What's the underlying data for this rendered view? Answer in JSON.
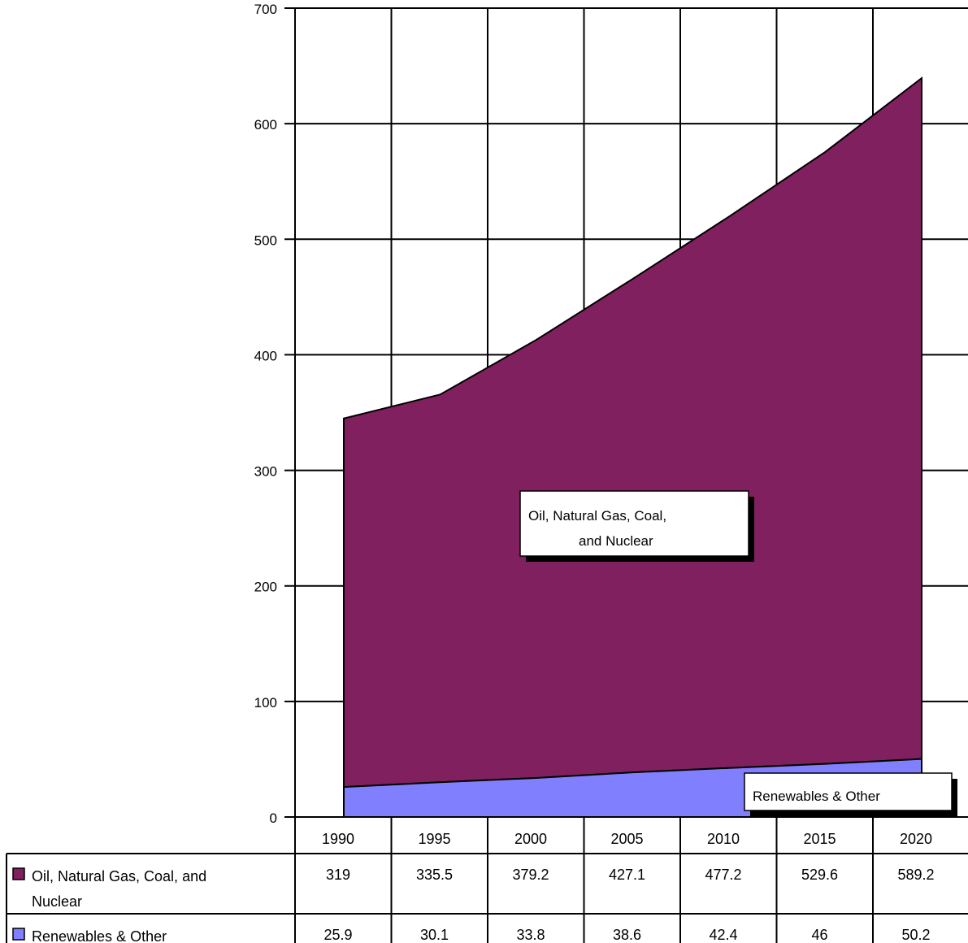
{
  "chart_data": {
    "type": "area",
    "stacked": true,
    "categories": [
      "1990",
      "1995",
      "2000",
      "2005",
      "2010",
      "2015",
      "2020"
    ],
    "ylim": [
      0,
      700
    ],
    "y_ticks": [
      "0",
      "100",
      "200",
      "300",
      "400",
      "500",
      "600",
      "700"
    ],
    "grid": true,
    "series": [
      {
        "name": "Renewables & Other",
        "color": "#8080ff",
        "values": [
          25.9,
          30.1,
          33.8,
          38.6,
          42.4,
          46,
          50.2
        ],
        "value_labels": [
          "25.9",
          "30.1",
          "33.8",
          "38.6",
          "42.4",
          "46",
          "50.2"
        ]
      },
      {
        "name": "Oil, Natural Gas, Coal, and Nuclear",
        "color": "#80205f",
        "values": [
          319,
          335.5,
          379.2,
          427.1,
          477.2,
          529.6,
          589.2
        ],
        "value_labels": [
          "319",
          "335.5",
          "379.2",
          "427.1",
          "477.2",
          "529.6",
          "589.2"
        ]
      }
    ],
    "annotations": [
      {
        "series": "Oil, Natural Gas, Coal, and Nuclear",
        "lines": [
          "Oil, Natural Gas, Coal,",
          "and Nuclear"
        ]
      },
      {
        "series": "Renewables & Other",
        "lines": [
          "Renewables & Other"
        ]
      }
    ],
    "data_table": {
      "rows": [
        {
          "label_lines": [
            "Oil, Natural Gas, Coal, and",
            "Nuclear"
          ],
          "series_index": 1
        },
        {
          "label_lines": [
            "Renewables & Other"
          ],
          "series_index": 0
        }
      ]
    }
  }
}
